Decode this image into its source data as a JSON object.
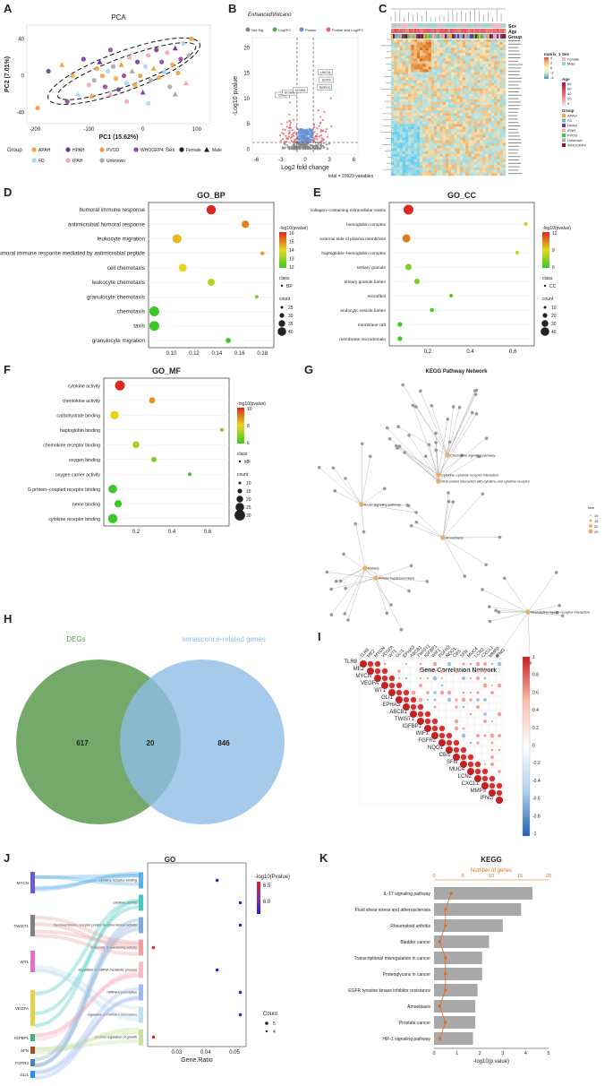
{
  "panels": {
    "A": {
      "letter": "A"
    },
    "B": {
      "letter": "B"
    },
    "C": {
      "letter": "C"
    },
    "D": {
      "letter": "D"
    },
    "E": {
      "letter": "E"
    },
    "F": {
      "letter": "F"
    },
    "G": {
      "letter": "G"
    },
    "H": {
      "letter": "H"
    },
    "I": {
      "letter": "I"
    },
    "J": {
      "letter": "J"
    },
    "K": {
      "letter": "K"
    }
  },
  "chart_data": [
    {
      "id": "A",
      "type": "scatter",
      "title": "PCA",
      "xlabel": "PC1 (15.62%)",
      "ylabel": "PC2 (7.01%)",
      "xticks": [
        "-200",
        "-100",
        "0",
        "100"
      ],
      "yticks": [
        "40",
        "0",
        "-40"
      ],
      "xlim": [
        -215,
        125
      ],
      "ylim": [
        -52,
        55
      ],
      "legend": {
        "group_title": "Group",
        "groups": [
          "APAH",
          "HPAH",
          "PVOD",
          "WHOGRP4",
          "FD",
          "IPAH",
          "Unknown"
        ],
        "group_colors": [
          "#f4a340",
          "#6a3d9a",
          "#f39c3c",
          "#8e44ad",
          "#a6d8f0",
          "#f4a6b8",
          "#aaaaaa"
        ],
        "sex_title": "Sex",
        "sexes": [
          "Female",
          "Male"
        ]
      },
      "points": [
        [
          -150,
          12
        ],
        [
          -175,
          5
        ],
        [
          -195,
          -35
        ],
        [
          -140,
          -28
        ],
        [
          -120,
          -20
        ],
        [
          -100,
          -10
        ],
        [
          -90,
          -5
        ],
        [
          -85,
          8
        ],
        [
          -80,
          15
        ],
        [
          -75,
          0
        ],
        [
          -70,
          -12
        ],
        [
          -65,
          5
        ],
        [
          -60,
          -20
        ],
        [
          -55,
          10
        ],
        [
          -50,
          -3
        ],
        [
          -45,
          -15
        ],
        [
          -40,
          12
        ],
        [
          -35,
          0
        ],
        [
          -30,
          -8
        ],
        [
          -25,
          20
        ],
        [
          -20,
          5
        ],
        [
          -15,
          -10
        ],
        [
          -10,
          15
        ],
        [
          -5,
          0
        ],
        [
          0,
          -18
        ],
        [
          5,
          10
        ],
        [
          10,
          22
        ],
        [
          15,
          -5
        ],
        [
          20,
          8
        ],
        [
          25,
          28
        ],
        [
          30,
          -2
        ],
        [
          35,
          15
        ],
        [
          40,
          5
        ],
        [
          45,
          25
        ],
        [
          50,
          -12
        ],
        [
          55,
          12
        ],
        [
          60,
          30
        ],
        [
          65,
          3
        ],
        [
          70,
          18
        ],
        [
          75,
          35
        ],
        [
          80,
          -8
        ],
        [
          85,
          22
        ],
        [
          90,
          40
        ],
        [
          -110,
          18
        ],
        [
          -95,
          -22
        ],
        [
          -60,
          28
        ],
        [
          10,
          -30
        ],
        [
          -30,
          -28
        ],
        [
          60,
          -20
        ],
        [
          -130,
          0
        ]
      ]
    },
    {
      "id": "B",
      "type": "scatter",
      "title": "EnhancedVolcano",
      "xlabel": "Log2 fold change",
      "ylabel": "-Log10 pvalue",
      "xticks": [
        "-6",
        "-3",
        "0",
        "3",
        "6"
      ],
      "yticks": [
        "0",
        "5",
        "10",
        "15",
        "20"
      ],
      "xlim": [
        -6.5,
        6.5
      ],
      "ylim": [
        -1,
        22
      ],
      "legend": [
        "Not Sig",
        "Log2FC",
        "Pvalue",
        "Pvalue and Log2FC"
      ],
      "legend_colors": [
        "#888888",
        "#4caf50",
        "#6b8fd6",
        "#e8656e"
      ],
      "caption": "total = 20929 variables",
      "labels": [
        "CFH2",
        "SCGB1",
        "SCGB2",
        "LINC01",
        "SOX9",
        "RSPO3"
      ]
    },
    {
      "id": "C",
      "type": "heatmap",
      "title": "",
      "annotations": [
        "Sex",
        "Age",
        "Group"
      ],
      "legend_titles": [
        "matrix_1",
        "Sex",
        "Age",
        "Group"
      ],
      "matrix_ticks": [
        "4",
        "2",
        "0",
        "-2",
        "-4"
      ],
      "sex": [
        "Female",
        "Male"
      ],
      "age_ticks": [
        "80",
        "60",
        "40",
        "20",
        "0"
      ],
      "groups": [
        "APAH",
        "FD",
        "HPAH",
        "IPAH",
        "PVOD",
        "Unknown",
        "WHOGRP4"
      ],
      "group_colors": [
        "#f4a340",
        "#6baed6",
        "#6a3d9a",
        "#f4a6b8",
        "#33cc33",
        "#aaaaaa",
        "#8b1a1a"
      ]
    },
    {
      "id": "D",
      "type": "scatter",
      "title": "GO_BP",
      "categories": [
        "humoral immune response",
        "antimicrobial humoral response",
        "leukocyte migration",
        "antimicrobial humoral immune response mediated by antimicrobial peptide",
        "cell chemotaxis",
        "leukocyte chemotaxis",
        "granulocyte chemotaxis",
        "chemotaxis",
        "taxis",
        "granulocyte migration"
      ],
      "x": [
        0.135,
        0.165,
        0.105,
        0.18,
        0.11,
        0.135,
        0.175,
        0.085,
        0.085,
        0.15
      ],
      "pval": [
        17,
        15.5,
        14.5,
        15,
        14,
        13,
        12,
        11,
        11,
        11
      ],
      "count": [
        40,
        30,
        38,
        12,
        33,
        28,
        10,
        42,
        42,
        18
      ],
      "xticks": [
        "0.10",
        "0.12",
        "0.14",
        "0.16",
        "0.18"
      ],
      "xlim": [
        0.08,
        0.19
      ],
      "legend_title": "-log10(pvalue)",
      "legend_ticks": [
        "16",
        "15",
        "14",
        "13",
        "12"
      ],
      "class_title": "class",
      "class_label": "BP",
      "count_title": "count",
      "count_ticks": [
        "25",
        "30",
        "35",
        "40"
      ]
    },
    {
      "id": "E",
      "type": "scatter",
      "title": "GO_CC",
      "categories": [
        "collagen−containing extracellular matrix",
        "hemoglobin complex",
        "external side of plasma membrane",
        "haptoglobin−hemoglobin complex",
        "tertiary granule",
        "tertiary granule lumen",
        "microfibril",
        "endocytic vesicle lumen",
        "membrane raft",
        "membrane microdomain"
      ],
      "x": [
        0.11,
        0.66,
        0.1,
        0.62,
        0.11,
        0.15,
        0.31,
        0.22,
        0.07,
        0.07
      ],
      "pval": [
        13,
        8,
        11,
        8,
        6,
        6,
        5,
        5,
        4.5,
        4.5
      ],
      "count": [
        40,
        6,
        30,
        6,
        20,
        15,
        5,
        8,
        12,
        12
      ],
      "xticks": [
        "0.2",
        "0.4",
        "0.6"
      ],
      "xlim": [
        0.02,
        0.7
      ],
      "legend_title": "-log10(pvalue)",
      "legend_ticks": [
        "12",
        "9",
        "6"
      ],
      "class_title": "class",
      "class_label": "CC",
      "count_title": "count",
      "count_ticks": [
        "10",
        "20",
        "30",
        "40"
      ]
    },
    {
      "id": "F",
      "type": "scatter",
      "title": "GO_MF",
      "categories": [
        "cytokine activity",
        "chemokine activity",
        "carbohydrate binding",
        "haptoglobin binding",
        "chemokine receptor binding",
        "oxygen binding",
        "oxygen carrier activity",
        "G protein−coupled receptor binding",
        "heme binding",
        "cytokine receptor binding"
      ],
      "x": [
        0.11,
        0.29,
        0.08,
        0.68,
        0.2,
        0.3,
        0.5,
        0.07,
        0.1,
        0.07
      ],
      "pval": [
        11,
        9.5,
        8.5,
        7,
        7.5,
        7,
        6,
        6,
        6,
        6
      ],
      "count": [
        30,
        15,
        25,
        6,
        18,
        12,
        5,
        25,
        20,
        28
      ],
      "xticks": [
        "0.2",
        "0.4",
        "0.6"
      ],
      "xlim": [
        0.02,
        0.72
      ],
      "legend_title": "-log10(pvalue)",
      "legend_ticks": [
        "10",
        "8",
        "6"
      ],
      "class_title": "class",
      "class_label": "MF",
      "count_title": "count",
      "count_ticks": [
        "10",
        "15",
        "20",
        "25",
        "30"
      ]
    },
    {
      "id": "G",
      "type": "network",
      "title": "KEGG Pathway Network",
      "caption": "Gene Correlation Network",
      "hubs": [
        "Chemokine signaling pathway",
        "Cytokine−cytokine receptor interaction",
        "Viral protein interaction with cytokine and cytokine receptor",
        "IL−17 signaling pathway",
        "Amoebiasis",
        "Malaria",
        "African trypanosomiasis",
        "Neuroactive ligand−receptor interaction"
      ],
      "size_title": "size",
      "size_ticks": [
        "10",
        "15",
        "20",
        "25"
      ]
    },
    {
      "id": "H",
      "type": "venn",
      "sets": [
        "DEGs",
        "senescence-related genes"
      ],
      "values": [
        617,
        20,
        846
      ],
      "colors": [
        "#5b9a4f",
        "#8fbde6"
      ]
    },
    {
      "id": "I",
      "type": "heatmap",
      "genes": [
        "TLR8",
        "ME2",
        "MYCN",
        "VEGFA",
        "WT1",
        "GLI1",
        "EPHA3",
        "ABCB1",
        "TWIST1",
        "IGFBP1",
        "WIF1",
        "FGFR2",
        "NQO1",
        "CBS",
        "SFN",
        "MUC4",
        "LCN2",
        "CXCL1",
        "MMP9",
        "IFNG"
      ],
      "colorbar_ticks": [
        "1",
        "0.8",
        "0.6",
        "0.4",
        "0.2",
        "0",
        "-0.2",
        "-0.4",
        "-0.6",
        "-0.8",
        "-1"
      ]
    },
    {
      "id": "J",
      "type": "scatter",
      "title": "GO",
      "genes": [
        "MYCN",
        "TWIST1",
        "WT1",
        "VEGFA",
        "IGFBP1",
        "SFN",
        "FGFR2",
        "GLI1"
      ],
      "categories": [
        "cytokine receptor binding",
        "cytokine activity",
        "transmembrane receptor protein tyrosine kinase activity",
        "molecular sequestering activity",
        "regulation of miRNA metabolic process",
        "miRNA transcription",
        "regulation of miRNA transcription",
        "positive regulation of growth"
      ],
      "x": [
        0.044,
        0.052,
        0.052,
        0.022,
        0.044,
        0.052,
        0.052,
        0.022
      ],
      "pval": [
        5.8,
        5.8,
        5.8,
        6.7,
        5.8,
        5.8,
        5.8,
        6.7
      ],
      "count": [
        4,
        4,
        4,
        4,
        4,
        4,
        4,
        4
      ],
      "xlabel": "Gene.Ratio",
      "xticks": [
        "0.03",
        "0.04",
        "0.05"
      ],
      "xlim": [
        0.02,
        0.054
      ],
      "legend_title": "-log10(Pvalue)",
      "legend_ticks": [
        "6.5",
        "6.0"
      ],
      "count_title": "Count",
      "count_ticks": [
        "5",
        "4"
      ]
    },
    {
      "id": "K",
      "type": "bar",
      "title": "KEGG",
      "categories": [
        "IL-17 signaling pathway",
        "Fluid shear stress and atherosclerosis",
        "Rheumatoid arthritis",
        "Bladder cancer",
        "Transcriptional misregulation in cancer",
        "Proteoglycans in cancer",
        "EGFR tyrosine kinase inhibitor resistance",
        "Amoebiasis",
        "Prostate cancer",
        "HIF-1 signaling pathway"
      ],
      "values": [
        4.3,
        3.8,
        3.0,
        2.4,
        2.1,
        2.1,
        1.9,
        1.8,
        1.8,
        1.7
      ],
      "genes": [
        3,
        2,
        2,
        1,
        2,
        2,
        2,
        1,
        2,
        1
      ],
      "xlabel": "-log10(p.value)",
      "xticks": [
        "0",
        "1",
        "2",
        "3",
        "4",
        "5"
      ],
      "xlim": [
        0,
        5
      ],
      "top_label": "Number of genes",
      "top_ticks": [
        "0",
        "5",
        "10",
        "15",
        "20"
      ],
      "top_lim": [
        0,
        20
      ]
    }
  ]
}
